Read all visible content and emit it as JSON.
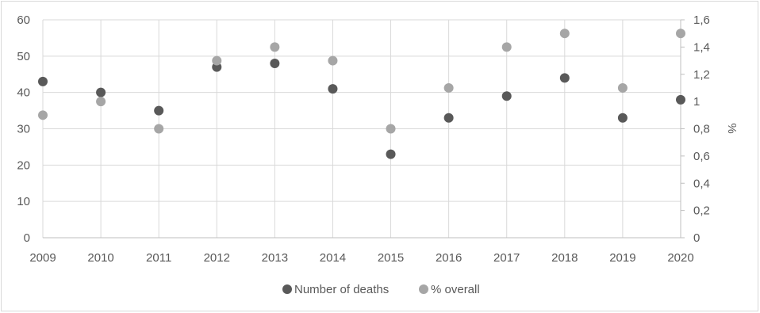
{
  "chart_data": {
    "type": "scatter",
    "categories": [
      "2009",
      "2010",
      "2011",
      "2012",
      "2013",
      "2014",
      "2015",
      "2016",
      "2017",
      "2018",
      "2019",
      "2020"
    ],
    "series": [
      {
        "name": "Number of deaths",
        "axis": "left",
        "values": [
          43,
          40,
          35,
          47,
          48,
          41,
          23,
          33,
          39,
          44,
          33,
          38
        ],
        "color": "#595959"
      },
      {
        "name": "% overall",
        "axis": "right",
        "values": [
          0.9,
          1.0,
          0.8,
          1.3,
          1.4,
          1.3,
          0.8,
          1.1,
          1.4,
          1.5,
          1.1,
          1.5
        ],
        "color": "#a6a6a6"
      }
    ],
    "y_left": {
      "min": 0,
      "max": 60,
      "ticks": [
        "0",
        "10",
        "20",
        "30",
        "40",
        "50",
        "60"
      ]
    },
    "y_right": {
      "min": 0,
      "max": 1.6,
      "label": "%",
      "ticks": [
        "0",
        "0,2",
        "0,4",
        "0,6",
        "0,8",
        "1",
        "1,2",
        "1,4",
        "1,6"
      ]
    },
    "grid": true,
    "legend_position": "bottom"
  }
}
